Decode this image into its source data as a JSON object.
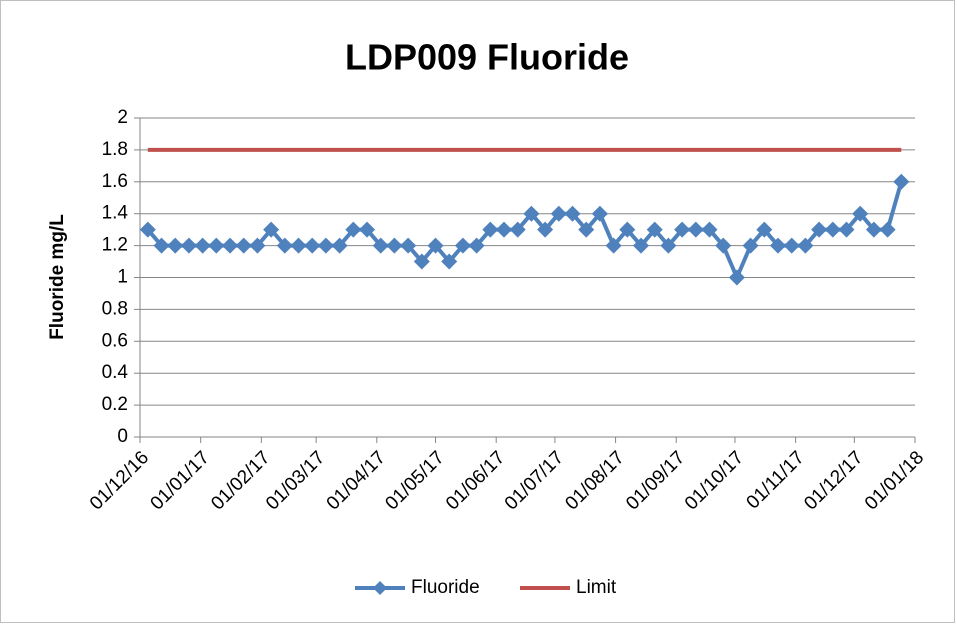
{
  "chart_data": {
    "type": "line",
    "title": "LDP009 Fluoride",
    "y_label": "Fluoride mg/L",
    "x": [
      "2016-12-05",
      "2016-12-12",
      "2016-12-19",
      "2016-12-26",
      "2017-01-02",
      "2017-01-09",
      "2017-01-16",
      "2017-01-23",
      "2017-01-30",
      "2017-02-06",
      "2017-02-13",
      "2017-02-20",
      "2017-02-27",
      "2017-03-06",
      "2017-03-13",
      "2017-03-20",
      "2017-03-27",
      "2017-04-03",
      "2017-04-10",
      "2017-04-17",
      "2017-04-24",
      "2017-05-01",
      "2017-05-08",
      "2017-05-15",
      "2017-05-22",
      "2017-05-29",
      "2017-06-05",
      "2017-06-12",
      "2017-06-19",
      "2017-06-26",
      "2017-07-03",
      "2017-07-10",
      "2017-07-17",
      "2017-07-24",
      "2017-07-31",
      "2017-08-07",
      "2017-08-14",
      "2017-08-21",
      "2017-08-28",
      "2017-09-04",
      "2017-09-11",
      "2017-09-18",
      "2017-09-25",
      "2017-10-02",
      "2017-10-09",
      "2017-10-16",
      "2017-10-23",
      "2017-10-30",
      "2017-11-06",
      "2017-11-13",
      "2017-11-20",
      "2017-11-27",
      "2017-12-04",
      "2017-12-11",
      "2017-12-18",
      "2017-12-25"
    ],
    "series": [
      {
        "name": "Fluoride",
        "color": "#4f81bd",
        "marker": "diamond",
        "values": [
          1.3,
          1.2,
          1.2,
          1.2,
          1.2,
          1.2,
          1.2,
          1.2,
          1.2,
          1.3,
          1.2,
          1.2,
          1.2,
          1.2,
          1.2,
          1.3,
          1.3,
          1.2,
          1.2,
          1.2,
          1.1,
          1.2,
          1.1,
          1.2,
          1.2,
          1.3,
          1.3,
          1.3,
          1.4,
          1.3,
          1.4,
          1.4,
          1.3,
          1.4,
          1.2,
          1.3,
          1.2,
          1.3,
          1.2,
          1.3,
          1.3,
          1.3,
          1.2,
          1.0,
          1.2,
          1.3,
          1.2,
          1.2,
          1.2,
          1.3,
          1.3,
          1.3,
          1.4,
          1.3,
          1.3,
          1.6
        ]
      },
      {
        "name": "Limit",
        "color": "#c0504d",
        "values": [
          1.8,
          1.8,
          1.8,
          1.8,
          1.8,
          1.8,
          1.8,
          1.8,
          1.8,
          1.8,
          1.8,
          1.8,
          1.8,
          1.8,
          1.8,
          1.8,
          1.8,
          1.8,
          1.8,
          1.8,
          1.8,
          1.8,
          1.8,
          1.8,
          1.8,
          1.8,
          1.8,
          1.8,
          1.8,
          1.8,
          1.8,
          1.8,
          1.8,
          1.8,
          1.8,
          1.8,
          1.8,
          1.8,
          1.8,
          1.8,
          1.8,
          1.8,
          1.8,
          1.8,
          1.8,
          1.8,
          1.8,
          1.8,
          1.8,
          1.8,
          1.8,
          1.8,
          1.8,
          1.8,
          1.8,
          1.8
        ]
      }
    ],
    "xlim": [
      "2016-12-01",
      "2018-01-01"
    ],
    "xticks": [
      {
        "value": "2016-12-01",
        "label": "01/12/16"
      },
      {
        "value": "2017-01-01",
        "label": "01/01/17"
      },
      {
        "value": "2017-02-01",
        "label": "01/02/17"
      },
      {
        "value": "2017-03-01",
        "label": "01/03/17"
      },
      {
        "value": "2017-04-01",
        "label": "01/04/17"
      },
      {
        "value": "2017-05-01",
        "label": "01/05/17"
      },
      {
        "value": "2017-06-01",
        "label": "01/06/17"
      },
      {
        "value": "2017-07-01",
        "label": "01/07/17"
      },
      {
        "value": "2017-08-01",
        "label": "01/08/17"
      },
      {
        "value": "2017-09-01",
        "label": "01/09/17"
      },
      {
        "value": "2017-10-01",
        "label": "01/10/17"
      },
      {
        "value": "2017-11-01",
        "label": "01/11/17"
      },
      {
        "value": "2017-12-01",
        "label": "01/12/17"
      },
      {
        "value": "2018-01-01",
        "label": "01/01/18"
      }
    ],
    "ylim": [
      0,
      2
    ],
    "yticks": [
      0,
      0.2,
      0.4,
      0.6,
      0.8,
      1,
      1.2,
      1.4,
      1.6,
      1.8,
      2
    ],
    "grid": true,
    "legend": "bottom"
  }
}
